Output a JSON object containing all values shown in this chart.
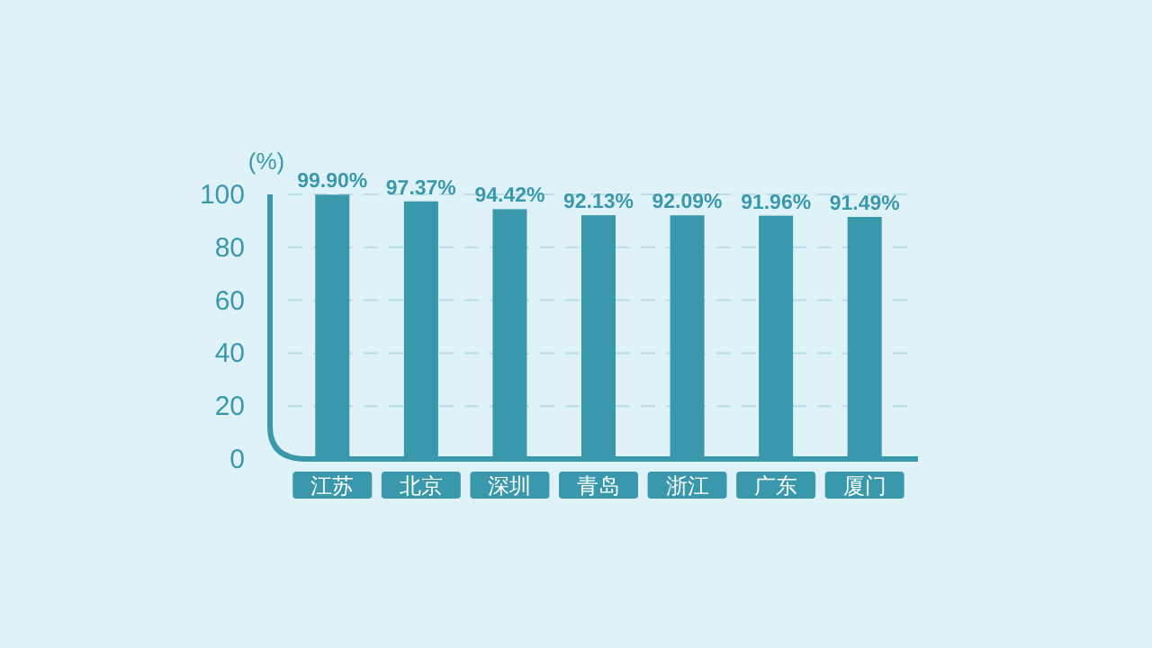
{
  "chart_data": {
    "type": "bar",
    "ylabel": "(%)",
    "categories": [
      "江苏",
      "北京",
      "深圳",
      "青岛",
      "浙江",
      "广东",
      "厦门"
    ],
    "values": [
      99.9,
      97.37,
      94.42,
      92.13,
      92.09,
      91.96,
      91.49
    ],
    "value_labels": [
      "99.90%",
      "97.37%",
      "94.42%",
      "92.13%",
      "92.09%",
      "91.96%",
      "91.49%"
    ],
    "color": "#3a98ac",
    "ylim": [
      0,
      100
    ],
    "yticks": [
      0,
      20,
      40,
      60,
      80,
      100
    ],
    "grid": "y"
  }
}
